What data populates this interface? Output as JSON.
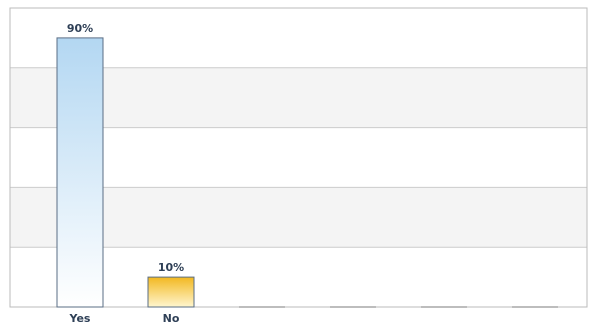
{
  "chart_data": {
    "type": "bar",
    "categories": [
      "Yes",
      "No",
      "",
      "",
      "",
      ""
    ],
    "values": [
      90,
      10,
      0,
      0,
      0,
      0
    ],
    "data_labels": [
      "90%",
      "10%",
      "",
      "",
      "",
      ""
    ],
    "ylim": [
      0,
      100
    ],
    "grid": true,
    "legend": "none",
    "colors": {
      "bar_yes_top": "#b3d7f2",
      "bar_yes_bottom": "#ffffff",
      "bar_no_top": "#f2b820",
      "bar_no_bottom": "#fff6cf",
      "bar_outline": "#5a6d84",
      "band": "#f4f4f4",
      "gridline": "#cccccc",
      "label_text": "#2e3f56",
      "placeholder": "#bdbdbd"
    }
  }
}
